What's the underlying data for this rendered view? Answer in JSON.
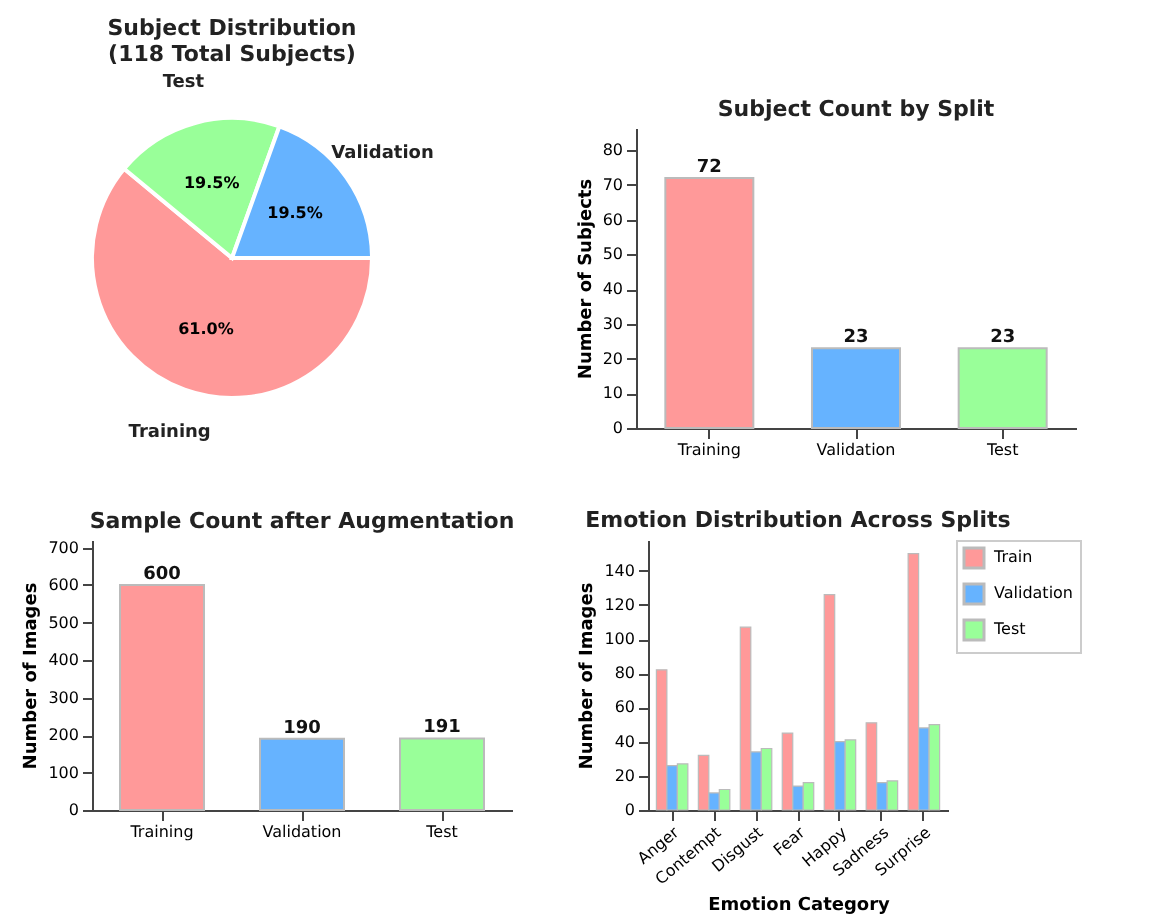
{
  "chart_data": [
    {
      "type": "pie",
      "title": "Subject Distribution\n(118 Total Subjects)",
      "categories": [
        "Training",
        "Test",
        "Validation"
      ],
      "values": [
        61.0,
        19.5,
        19.5
      ],
      "colors": [
        "#ff9999",
        "#99ff99",
        "#66b3ff"
      ],
      "value_labels": [
        "61.0%",
        "19.5%",
        "19.5%"
      ]
    },
    {
      "type": "bar",
      "title": "Subject Count by Split",
      "ylabel": "Number of Subjects",
      "categories": [
        "Training",
        "Validation",
        "Test"
      ],
      "values": [
        72,
        23,
        23
      ],
      "colors": [
        "#ff9999",
        "#66b3ff",
        "#99ff99"
      ],
      "ylim": [
        0,
        86.4
      ],
      "yticks": [
        0,
        10,
        20,
        30,
        40,
        50,
        60,
        70,
        80
      ],
      "data_labels": true
    },
    {
      "type": "bar",
      "title": "Sample Count after Augmentation",
      "ylabel": "Number of Images",
      "categories": [
        "Training",
        "Validation",
        "Test"
      ],
      "values": [
        600,
        190,
        191
      ],
      "colors": [
        "#ff9999",
        "#66b3ff",
        "#99ff99"
      ],
      "ylim": [
        0,
        720
      ],
      "yticks": [
        0,
        100,
        200,
        300,
        400,
        500,
        600,
        700
      ],
      "data_labels": true
    },
    {
      "type": "bar",
      "title": "Emotion Distribution Across Splits",
      "xlabel": "Emotion Category",
      "ylabel": "Number of Images",
      "categories": [
        "Anger",
        "Contempt",
        "Disgust",
        "Fear",
        "Happy",
        "Sadness",
        "Surprise"
      ],
      "ylim": [
        0,
        158
      ],
      "yticks": [
        0,
        20,
        40,
        60,
        80,
        100,
        120,
        140
      ],
      "legend": "top right",
      "series": [
        {
          "name": "Train",
          "color": "#ff9999",
          "values": [
            82,
            32,
            107,
            45,
            126,
            51,
            150
          ]
        },
        {
          "name": "Validation",
          "color": "#66b3ff",
          "values": [
            26,
            10,
            34,
            14,
            40,
            16,
            48
          ]
        },
        {
          "name": "Test",
          "color": "#99ff99",
          "values": [
            27,
            12,
            36,
            16,
            41,
            17,
            50
          ]
        }
      ]
    }
  ]
}
